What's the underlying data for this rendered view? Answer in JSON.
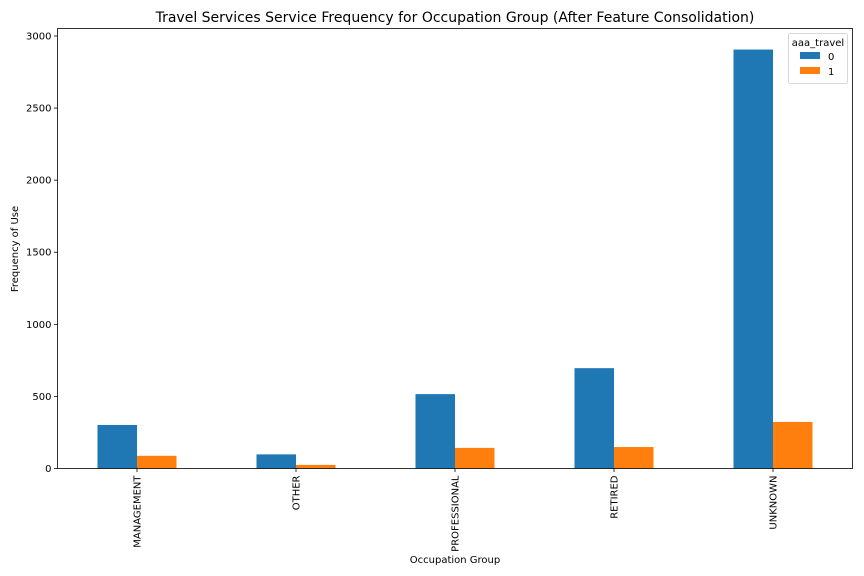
{
  "chart_data": {
    "type": "bar",
    "title": "Travel Services Service Frequency for Occupation Group (After Feature Consolidation)",
    "xlabel": "Occupation Group",
    "ylabel": "Frequency of Use",
    "categories": [
      "MANAGEMENT",
      "OTHER",
      "PROFESSIONAL",
      "RETIRED",
      "UNKNOWN"
    ],
    "series": [
      {
        "name": "0",
        "values": [
          302,
          98,
          516,
          696,
          2906
        ],
        "color": "#1f77b4"
      },
      {
        "name": "1",
        "values": [
          88,
          25,
          143,
          149,
          323
        ],
        "color": "#ff7f0e"
      }
    ],
    "ylim": [
      0,
      3052
    ],
    "yticks": [
      0,
      500,
      1000,
      1500,
      2000,
      2500,
      3000
    ],
    "legend": {
      "title": "aaa_travel",
      "position": "top-right"
    },
    "grid": false
  }
}
